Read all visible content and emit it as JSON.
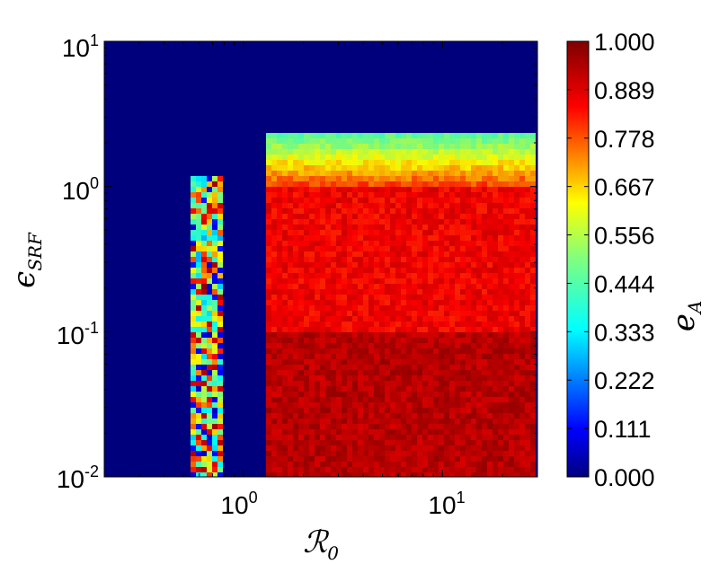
{
  "chart_data": {
    "type": "heatmap",
    "title": "",
    "xlabel": {
      "base": "ℛ",
      "sub": "0"
    },
    "ylabel": {
      "base": "ϵ",
      "sub": "SRF"
    },
    "colorbar_label": {
      "base": "e",
      "sub": "A"
    },
    "x_scale": "log",
    "y_scale": "log",
    "xlim": [
      0.2,
      30
    ],
    "ylim": [
      0.01,
      10
    ],
    "x_ticks": [
      {
        "value": 1,
        "base": "10",
        "exp": "0"
      },
      {
        "value": 10,
        "base": "10",
        "exp": "1"
      }
    ],
    "y_ticks": [
      {
        "value": 0.01,
        "base": "10",
        "exp": "-2"
      },
      {
        "value": 0.1,
        "base": "10",
        "exp": "-1"
      },
      {
        "value": 1,
        "base": "10",
        "exp": "0"
      },
      {
        "value": 10,
        "base": "10",
        "exp": "1"
      }
    ],
    "colorbar_range": [
      0,
      1
    ],
    "colorbar_ticks": [
      "0.000",
      "0.111",
      "0.222",
      "0.333",
      "0.444",
      "0.556",
      "0.667",
      "0.778",
      "0.889",
      "1.000"
    ],
    "colormap": "jet",
    "colormap_colors": [
      "#00007f",
      "#0000ff",
      "#007fff",
      "#00ffff",
      "#7fff7f",
      "#ffff00",
      "#ff7f00",
      "#ff0000",
      "#7f0000"
    ],
    "regions": [
      {
        "x_range": [
          0.2,
          0.55
        ],
        "y_range": [
          0.01,
          10
        ],
        "value": 0.0
      },
      {
        "x_range": [
          0.55,
          0.8
        ],
        "y_range": [
          0.01,
          1.2
        ],
        "value": 0.6,
        "note_value_range": [
          0.3,
          0.95
        ]
      },
      {
        "x_range": [
          0.8,
          1.3
        ],
        "y_range": [
          0.01,
          10
        ],
        "value": 0.0
      },
      {
        "x_range": [
          1.3,
          30
        ],
        "y_range": [
          2.3,
          10
        ],
        "value": 0.0
      },
      {
        "x_range": [
          1.3,
          30
        ],
        "y_range": [
          1.0,
          2.3
        ],
        "value_bottom": 0.8,
        "value_top": 0.45
      },
      {
        "x_range": [
          1.3,
          30
        ],
        "y_range": [
          0.1,
          1.0
        ],
        "value": 0.86
      },
      {
        "x_range": [
          1.3,
          30
        ],
        "y_range": [
          0.01,
          0.1
        ],
        "value": 0.93
      }
    ]
  }
}
